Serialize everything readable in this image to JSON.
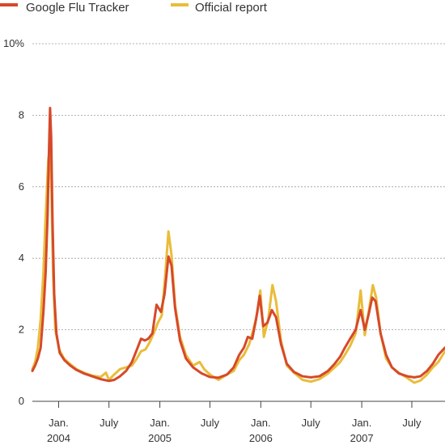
{
  "chart_data": {
    "type": "line",
    "title": "",
    "xlabel": "",
    "ylabel": "",
    "ylim": [
      0,
      10
    ],
    "xlim": [
      "2003-09-28",
      "2007-10-29"
    ],
    "grid": true,
    "legend_position": "top-left",
    "y_ticks": [
      {
        "value": 0,
        "label": "0"
      },
      {
        "value": 2,
        "label": "2"
      },
      {
        "value": 4,
        "label": "4"
      },
      {
        "value": 6,
        "label": "6"
      },
      {
        "value": 8,
        "label": "8"
      },
      {
        "value": 10,
        "label": "10%"
      }
    ],
    "x_ticks": [
      {
        "date": "2004-01-01",
        "month": "Jan.",
        "year": "2004"
      },
      {
        "date": "2004-07-01",
        "month": "July",
        "year": ""
      },
      {
        "date": "2005-01-01",
        "month": "Jan.",
        "year": "2005"
      },
      {
        "date": "2005-07-01",
        "month": "July",
        "year": ""
      },
      {
        "date": "2006-01-01",
        "month": "Jan.",
        "year": "2006"
      },
      {
        "date": "2006-07-01",
        "month": "July",
        "year": ""
      },
      {
        "date": "2007-01-01",
        "month": "Jan.",
        "year": "2007"
      },
      {
        "date": "2007-07-01",
        "month": "July",
        "year": ""
      }
    ],
    "series": [
      {
        "name": "Google Flu Tracker",
        "color": "#d6492a",
        "points": [
          [
            "2003-09-28",
            0.85
          ],
          [
            "2003-10-08",
            1.0
          ],
          [
            "2003-10-18",
            1.2
          ],
          [
            "2003-10-28",
            1.5
          ],
          [
            "2003-11-07",
            2.5
          ],
          [
            "2003-11-15",
            3.6
          ],
          [
            "2003-11-22",
            5.2
          ],
          [
            "2003-11-27",
            7.0
          ],
          [
            "2003-12-01",
            8.2
          ],
          [
            "2003-12-05",
            7.4
          ],
          [
            "2003-12-10",
            5.0
          ],
          [
            "2003-12-16",
            3.0
          ],
          [
            "2003-12-24",
            1.9
          ],
          [
            "2004-01-05",
            1.35
          ],
          [
            "2004-01-22",
            1.15
          ],
          [
            "2004-02-12",
            1.0
          ],
          [
            "2004-03-05",
            0.88
          ],
          [
            "2004-04-01",
            0.78
          ],
          [
            "2004-05-01",
            0.7
          ],
          [
            "2004-06-01",
            0.62
          ],
          [
            "2004-07-01",
            0.57
          ],
          [
            "2004-07-20",
            0.6
          ],
          [
            "2004-08-10",
            0.7
          ],
          [
            "2004-09-01",
            0.85
          ],
          [
            "2004-09-22",
            1.1
          ],
          [
            "2004-10-10",
            1.45
          ],
          [
            "2004-10-25",
            1.75
          ],
          [
            "2004-11-08",
            1.7
          ],
          [
            "2004-11-20",
            1.75
          ],
          [
            "2004-12-05",
            1.9
          ],
          [
            "2004-12-20",
            2.7
          ],
          [
            "2005-01-05",
            2.5
          ],
          [
            "2005-01-18",
            3.0
          ],
          [
            "2005-02-01",
            4.05
          ],
          [
            "2005-02-12",
            3.8
          ],
          [
            "2005-02-25",
            2.6
          ],
          [
            "2005-03-15",
            1.7
          ],
          [
            "2005-04-05",
            1.2
          ],
          [
            "2005-05-01",
            0.95
          ],
          [
            "2005-06-01",
            0.78
          ],
          [
            "2005-07-01",
            0.68
          ],
          [
            "2005-08-01",
            0.66
          ],
          [
            "2005-09-01",
            0.75
          ],
          [
            "2005-09-25",
            0.95
          ],
          [
            "2005-10-15",
            1.3
          ],
          [
            "2005-11-01",
            1.5
          ],
          [
            "2005-11-15",
            1.8
          ],
          [
            "2005-12-01",
            1.75
          ],
          [
            "2005-12-15",
            2.3
          ],
          [
            "2005-12-28",
            2.95
          ],
          [
            "2006-01-10",
            2.1
          ],
          [
            "2006-01-25",
            2.2
          ],
          [
            "2006-02-10",
            2.55
          ],
          [
            "2006-02-25",
            2.35
          ],
          [
            "2006-03-15",
            1.6
          ],
          [
            "2006-04-05",
            1.05
          ],
          [
            "2006-05-01",
            0.82
          ],
          [
            "2006-06-01",
            0.7
          ],
          [
            "2006-07-01",
            0.67
          ],
          [
            "2006-08-01",
            0.7
          ],
          [
            "2006-09-01",
            0.85
          ],
          [
            "2006-09-25",
            1.05
          ],
          [
            "2006-10-15",
            1.25
          ],
          [
            "2006-11-01",
            1.5
          ],
          [
            "2006-11-20",
            1.75
          ],
          [
            "2006-12-10",
            2.0
          ],
          [
            "2006-12-28",
            2.55
          ],
          [
            "2007-01-12",
            2.0
          ],
          [
            "2007-01-25",
            2.4
          ],
          [
            "2007-02-08",
            2.9
          ],
          [
            "2007-02-20",
            2.8
          ],
          [
            "2007-03-10",
            1.9
          ],
          [
            "2007-03-30",
            1.3
          ],
          [
            "2007-04-20",
            0.95
          ],
          [
            "2007-05-15",
            0.78
          ],
          [
            "2007-06-15",
            0.7
          ],
          [
            "2007-07-10",
            0.67
          ],
          [
            "2007-08-01",
            0.7
          ],
          [
            "2007-08-25",
            0.85
          ],
          [
            "2007-09-15",
            1.05
          ],
          [
            "2007-10-05",
            1.3
          ],
          [
            "2007-10-29",
            1.5
          ]
        ]
      },
      {
        "name": "Official report",
        "color": "#e9bd3a",
        "points": [
          [
            "2003-09-28",
            0.9
          ],
          [
            "2003-10-08",
            1.1
          ],
          [
            "2003-10-18",
            1.5
          ],
          [
            "2003-10-28",
            2.3
          ],
          [
            "2003-11-07",
            3.6
          ],
          [
            "2003-11-14",
            5.0
          ],
          [
            "2003-11-20",
            6.0
          ],
          [
            "2003-11-25",
            6.8
          ],
          [
            "2003-12-01",
            7.0
          ],
          [
            "2003-12-06",
            5.8
          ],
          [
            "2003-12-12",
            3.5
          ],
          [
            "2003-12-20",
            2.0
          ],
          [
            "2004-01-03",
            1.45
          ],
          [
            "2004-01-20",
            1.2
          ],
          [
            "2004-02-10",
            1.05
          ],
          [
            "2004-03-05",
            0.9
          ],
          [
            "2004-04-01",
            0.8
          ],
          [
            "2004-05-01",
            0.72
          ],
          [
            "2004-06-01",
            0.68
          ],
          [
            "2004-06-20",
            0.8
          ],
          [
            "2004-07-01",
            0.6
          ],
          [
            "2004-07-20",
            0.75
          ],
          [
            "2004-08-10",
            0.9
          ],
          [
            "2004-09-01",
            0.95
          ],
          [
            "2004-09-22",
            1.0
          ],
          [
            "2004-10-10",
            1.2
          ],
          [
            "2004-10-25",
            1.4
          ],
          [
            "2004-11-10",
            1.45
          ],
          [
            "2004-11-25",
            1.65
          ],
          [
            "2004-12-10",
            1.9
          ],
          [
            "2004-12-25",
            2.2
          ],
          [
            "2005-01-08",
            2.4
          ],
          [
            "2005-01-20",
            3.5
          ],
          [
            "2005-02-01",
            4.75
          ],
          [
            "2005-02-12",
            4.1
          ],
          [
            "2005-02-25",
            2.7
          ],
          [
            "2005-03-15",
            1.8
          ],
          [
            "2005-04-05",
            1.3
          ],
          [
            "2005-05-01",
            1.0
          ],
          [
            "2005-05-25",
            1.1
          ],
          [
            "2005-06-10",
            0.9
          ],
          [
            "2005-07-01",
            0.75
          ],
          [
            "2005-08-01",
            0.6
          ],
          [
            "2005-09-01",
            0.75
          ],
          [
            "2005-09-25",
            0.85
          ],
          [
            "2005-10-15",
            1.15
          ],
          [
            "2005-11-01",
            1.3
          ],
          [
            "2005-11-20",
            1.6
          ],
          [
            "2005-12-05",
            2.0
          ],
          [
            "2005-12-20",
            2.5
          ],
          [
            "2005-12-30",
            3.1
          ],
          [
            "2006-01-12",
            1.8
          ],
          [
            "2006-01-28",
            2.3
          ],
          [
            "2006-02-12",
            3.25
          ],
          [
            "2006-02-25",
            2.8
          ],
          [
            "2006-03-15",
            1.7
          ],
          [
            "2006-04-05",
            1.0
          ],
          [
            "2006-05-01",
            0.8
          ],
          [
            "2006-06-01",
            0.6
          ],
          [
            "2006-07-01",
            0.55
          ],
          [
            "2006-08-01",
            0.62
          ],
          [
            "2006-09-01",
            0.78
          ],
          [
            "2006-09-25",
            0.95
          ],
          [
            "2006-10-15",
            1.1
          ],
          [
            "2006-11-01",
            1.3
          ],
          [
            "2006-11-20",
            1.55
          ],
          [
            "2006-12-10",
            1.9
          ],
          [
            "2006-12-28",
            3.1
          ],
          [
            "2007-01-12",
            1.85
          ],
          [
            "2007-01-28",
            2.6
          ],
          [
            "2007-02-10",
            3.25
          ],
          [
            "2007-02-22",
            2.9
          ],
          [
            "2007-03-10",
            1.9
          ],
          [
            "2007-03-30",
            1.2
          ],
          [
            "2007-04-20",
            0.95
          ],
          [
            "2007-05-15",
            0.8
          ],
          [
            "2007-06-15",
            0.65
          ],
          [
            "2007-07-10",
            0.52
          ],
          [
            "2007-08-01",
            0.58
          ],
          [
            "2007-08-25",
            0.75
          ],
          [
            "2007-09-15",
            0.95
          ],
          [
            "2007-10-05",
            1.1
          ],
          [
            "2007-10-29",
            1.4
          ]
        ]
      }
    ]
  }
}
